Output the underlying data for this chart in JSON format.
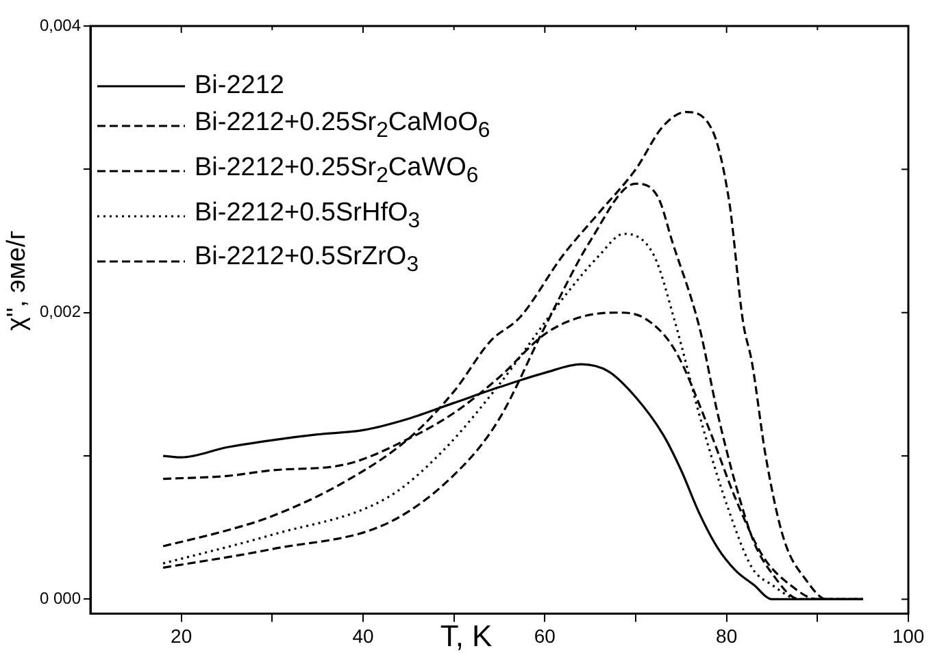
{
  "chart_data": {
    "type": "line",
    "xlabel": "T, K",
    "ylabel": "χ'', эме/г",
    "xlim": [
      10,
      100
    ],
    "xticks": [
      20,
      {
        "value": 30,
        "label": null
      },
      40,
      {
        "value": 50,
        "label": null
      },
      60,
      {
        "value": 70,
        "label": null
      },
      80,
      {
        "value": 90,
        "label": null
      },
      100
    ],
    "ylim": [
      -0.0001,
      0.004
    ],
    "yticks": [
      {
        "value": 0,
        "label": "0 000"
      },
      {
        "value": 0.001,
        "label": null
      },
      {
        "value": 0.002,
        "label": "0,002"
      },
      {
        "value": 0.003,
        "label": null
      },
      {
        "value": 0.004,
        "label": "0,004"
      }
    ],
    "grid": false,
    "legend": "top left",
    "marker": "none",
    "series": [
      {
        "name": "Bi-2212",
        "color": "#000000",
        "line_style": "solid",
        "x": [
          18,
          20,
          25,
          30,
          35,
          40,
          45,
          50,
          55,
          60,
          64,
          67,
          70,
          73,
          75,
          77,
          79,
          81,
          83,
          85,
          88,
          91,
          95
        ],
        "values": [
          0.001,
          0.00099,
          0.00106,
          0.00111,
          0.00115,
          0.00118,
          0.00126,
          0.00137,
          0.00148,
          0.00158,
          0.00164,
          0.00159,
          0.00141,
          0.00115,
          0.0009,
          0.0006,
          0.00036,
          0.0002,
          0.0001,
          0.0,
          0.0,
          0.0,
          0.0
        ]
      },
      {
        "name": "Bi-2212+0.25Sr$_{2}$CaMoO$_{6}$",
        "color": "#000000",
        "line_style": "dashed",
        "x": [
          18,
          25,
          30,
          38,
          45,
          50,
          55,
          60,
          64,
          68,
          71,
          74.3,
          78,
          81,
          84,
          87,
          90,
          95
        ],
        "values": [
          0.00084,
          0.00086,
          0.0009,
          0.00094,
          0.00112,
          0.0013,
          0.00155,
          0.00185,
          0.00197,
          0.002,
          0.00196,
          0.00174,
          0.0012,
          0.0007,
          0.0003,
          0.0001,
          0.0,
          0.0
        ]
      },
      {
        "name": "Bi-2212+0.25Sr$_{2}$CaWO$_{6}$",
        "color": "#000000",
        "line_style": "dashed",
        "x": [
          18,
          25,
          30,
          38,
          45,
          50,
          54,
          57.3,
          62,
          66,
          70,
          73,
          75.5,
          78.3,
          80.3,
          81.8,
          82.8,
          84.3,
          86.3,
          88.8,
          91,
          95
        ],
        "values": [
          0.00037,
          0.00048,
          0.00058,
          0.00082,
          0.00112,
          0.00145,
          0.0018,
          0.00197,
          0.0024,
          0.0027,
          0.003,
          0.0033,
          0.0034,
          0.00329,
          0.00277,
          0.00194,
          0.00165,
          0.001,
          0.00042,
          0.00013,
          0.0,
          0.0
        ]
      },
      {
        "name": "Bi-2212+0.5SrHfO$_{3}$",
        "color": "#000000",
        "line_style": "dotted",
        "x": [
          18,
          30,
          42.7,
          48.7,
          55,
          62,
          66,
          68.7,
          72,
          74.3,
          77.3,
          80.3,
          82.8,
          85,
          88,
          95
        ],
        "values": [
          0.00025,
          0.00045,
          0.00071,
          0.00103,
          0.0015,
          0.0021,
          0.0024,
          0.00255,
          0.0024,
          0.00194,
          0.00122,
          0.00061,
          0.00022,
          0.0001,
          0.0,
          0.0
        ]
      },
      {
        "name": "Bi-2212+0.5SrZrO$_{3}$",
        "color": "#000000",
        "line_style": "dashed",
        "x": [
          18,
          30,
          43,
          51,
          55,
          60,
          65,
          70,
          72.5,
          74,
          77,
          79,
          81,
          83,
          85,
          88,
          95
        ],
        "values": [
          0.00022,
          0.00035,
          0.00054,
          0.00093,
          0.00126,
          0.0019,
          0.0025,
          0.0029,
          0.0028,
          0.0025,
          0.0019,
          0.0013,
          0.0008,
          0.0004,
          0.00018,
          0.0,
          0.0
        ]
      }
    ]
  }
}
